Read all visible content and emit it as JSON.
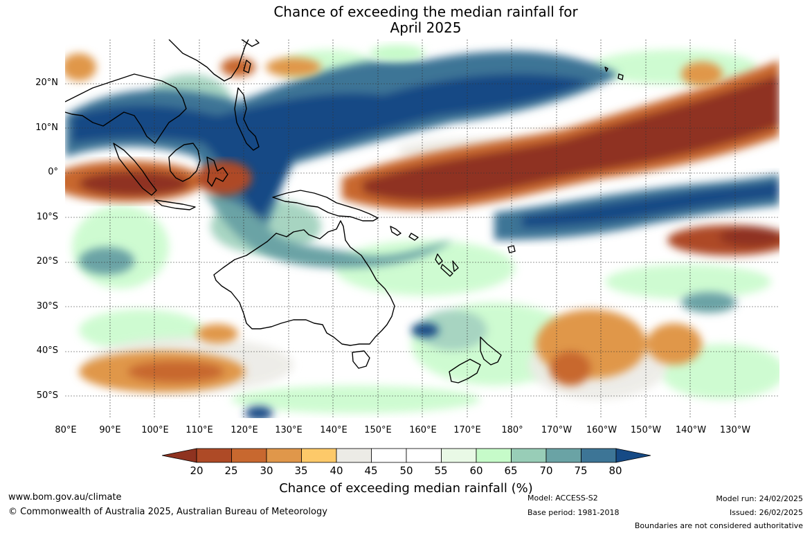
{
  "title_line1": "Chance of exceeding the median rainfall for",
  "title_line2": "April 2025",
  "lat_labels": [
    "20°N",
    "10°N",
    "0°",
    "10°S",
    "20°S",
    "30°S",
    "40°S",
    "50°S"
  ],
  "lon_labels": [
    "80°E",
    "90°E",
    "100°E",
    "110°E",
    "120°E",
    "130°E",
    "140°E",
    "150°E",
    "160°E",
    "170°E",
    "180°",
    "170°W",
    "160°W",
    "150°W",
    "140°W",
    "130°W"
  ],
  "colorbar": {
    "ticks": [
      "20",
      "25",
      "30",
      "35",
      "40",
      "45",
      "50",
      "55",
      "60",
      "65",
      "70",
      "75",
      "80"
    ],
    "colors": [
      "#8f3320",
      "#ae4a26",
      "#c8682f",
      "#e0974a",
      "#fdc969",
      "#ecebe6",
      "#ffffff",
      "#ffffff",
      "#e9f9e6",
      "#c6fbc9",
      "#98cdb7",
      "#6aa3a5",
      "#3d7596",
      "#164a85"
    ],
    "label": "Chance of exceeding median rainfall (%)"
  },
  "footer": {
    "website": "www.bom.gov.au/climate",
    "copyright": "© Commonwealth of Australia 2025, Australian Bureau of Meteorology",
    "model": "Model: ACCESS-S2",
    "base_period": "Base period: 1981-2018",
    "model_run": "Model run: 24/02/2025",
    "issued": "Issued: 26/02/2025",
    "disclaimer": "Boundaries are not considered authoritative"
  }
}
